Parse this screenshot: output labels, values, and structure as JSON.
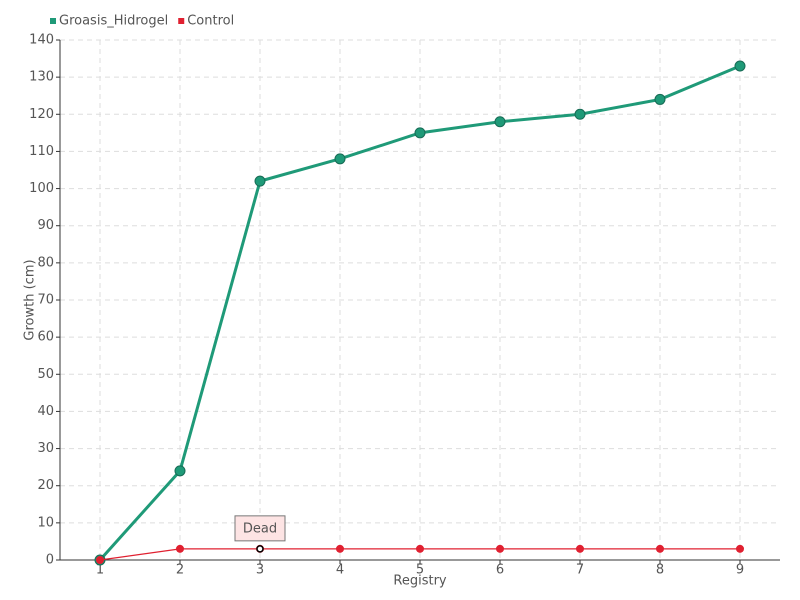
{
  "chart_data": {
    "type": "line",
    "x": [
      1,
      2,
      3,
      4,
      5,
      6,
      7,
      8,
      9
    ],
    "xlim": [
      0.5,
      9.5
    ],
    "xticks": [
      1,
      2,
      3,
      4,
      5,
      6,
      7,
      8,
      9
    ],
    "ylim": [
      0,
      140
    ],
    "yticks": [
      0,
      10,
      20,
      30,
      40,
      50,
      60,
      70,
      80,
      90,
      100,
      110,
      120,
      130,
      140
    ],
    "x_label": "Registry",
    "y_label": "Growth (cm)",
    "grid": true,
    "legend": "top-left",
    "series": [
      {
        "name": "Groasis_Hidrogel",
        "color": "#1f9a78",
        "values": [
          0,
          24,
          102,
          108,
          115,
          118,
          120,
          124,
          133
        ]
      },
      {
        "name": "Control",
        "color": "#e02030",
        "values": [
          0,
          3,
          3,
          3,
          3,
          3,
          3,
          3,
          3
        ]
      }
    ],
    "annotations": [
      {
        "text": "Dead",
        "x": 3,
        "y": 3
      }
    ]
  }
}
